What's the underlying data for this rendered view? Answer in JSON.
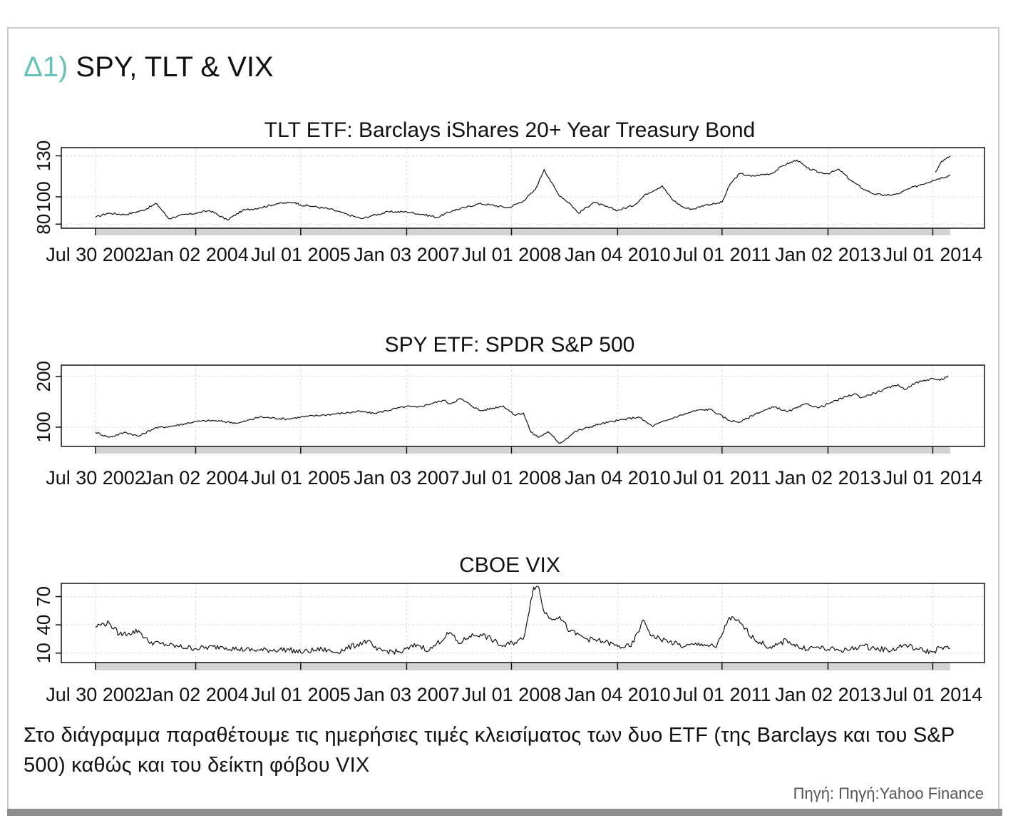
{
  "header": {
    "prefix": "Δ1)",
    "title": "SPY, TLT & VIX"
  },
  "caption": "Στο διάγραμμα παραθέτουμε τις ημερήσιες τιμές κλεισίματος των δυο ETF (της Barclays και του S&P 500) καθώς και του δείκτη φόβου VIX",
  "source": "Πηγή: Πηγή:Yahoo Finance",
  "colors": {
    "accent": "#69c2b6",
    "line": "#111111",
    "grid": "#d9d9d9",
    "date_band": "#d3d3d3"
  },
  "chart_data": [
    {
      "type": "line",
      "title": "TLT ETF: Barclays iShares 20+ Year Treasury Bond",
      "xlim": [
        "2002-07-30",
        "2014-09-30"
      ],
      "ylim": [
        77,
        136
      ],
      "yticks": [
        80,
        100,
        130
      ],
      "xticks": [
        {
          "label": "Jul 30 2002",
          "date": "2002-07-30"
        },
        {
          "label": "Jan 02 2004",
          "date": "2004-01-02"
        },
        {
          "label": "Jul 01 2005",
          "date": "2005-07-01"
        },
        {
          "label": "Jan 03 2007",
          "date": "2007-01-03"
        },
        {
          "label": "Jul 01 2008",
          "date": "2008-07-01"
        },
        {
          "label": "Jan 04 2010",
          "date": "2010-01-04"
        },
        {
          "label": "Jul 01 2011",
          "date": "2011-07-01"
        },
        {
          "label": "Jan 02 2013",
          "date": "2013-01-02"
        },
        {
          "label": "Jul 01 2014",
          "date": "2014-07-01"
        }
      ],
      "grid": true,
      "x": [
        "2002-07-30",
        "2002-10-01",
        "2003-01-02",
        "2003-04-01",
        "2003-06-13",
        "2003-08-15",
        "2003-10-01",
        "2004-01-02",
        "2004-03-15",
        "2004-06-14",
        "2004-09-01",
        "2004-12-01",
        "2005-03-01",
        "2005-06-01",
        "2005-07-01",
        "2005-09-01",
        "2005-12-01",
        "2006-03-01",
        "2006-05-15",
        "2006-07-01",
        "2006-10-01",
        "2007-01-03",
        "2007-04-01",
        "2007-06-12",
        "2007-09-01",
        "2007-11-01",
        "2008-01-15",
        "2008-03-15",
        "2008-06-15",
        "2008-09-01",
        "2008-11-01",
        "2008-12-18",
        "2009-01-15",
        "2009-03-01",
        "2009-05-01",
        "2009-06-15",
        "2009-09-01",
        "2009-11-01",
        "2010-01-04",
        "2010-04-01",
        "2010-06-01",
        "2010-08-24",
        "2010-10-15",
        "2010-12-15",
        "2011-02-01",
        "2011-04-01",
        "2011-06-01",
        "2011-07-01",
        "2011-08-15",
        "2011-10-01",
        "2011-12-01",
        "2012-01-15",
        "2012-03-15",
        "2012-05-15",
        "2012-07-25",
        "2012-09-15",
        "2012-11-15",
        "2013-01-02",
        "2013-03-01",
        "2013-05-01",
        "2013-07-01",
        "2013-09-01",
        "2013-11-01",
        "2013-12-31",
        "2014-03-01",
        "2014-05-01",
        "2014-07-01",
        "2014-09-30"
      ],
      "values": [
        85,
        88,
        87,
        90,
        95,
        84,
        86,
        88,
        90,
        83,
        90,
        92,
        95,
        96,
        94,
        93,
        91,
        87,
        84,
        86,
        89,
        89,
        87,
        85,
        90,
        92,
        95,
        94,
        92,
        97,
        105,
        120,
        113,
        102,
        95,
        88,
        96,
        93,
        90,
        94,
        102,
        108,
        98,
        92,
        91,
        94,
        95,
        96,
        110,
        117,
        115,
        116,
        117,
        123,
        127,
        121,
        118,
        117,
        120,
        112,
        106,
        102,
        101,
        102,
        106,
        109,
        112,
        116
      ],
      "extra_series": {
        "x": [
          "2014-07-15",
          "2014-08-15",
          "2014-09-30"
        ],
        "values": [
          118,
          126,
          130
        ]
      }
    },
    {
      "type": "line",
      "title": "SPY ETF: SPDR S&P 500",
      "xlim": [
        "2002-07-30",
        "2014-09-30"
      ],
      "ylim": [
        62,
        222
      ],
      "yticks": [
        100,
        200
      ],
      "xticks": [
        {
          "label": "Jul 30 2002",
          "date": "2002-07-30"
        },
        {
          "label": "Jan 02 2004",
          "date": "2004-01-02"
        },
        {
          "label": "Jul 01 2005",
          "date": "2005-07-01"
        },
        {
          "label": "Jan 03 2007",
          "date": "2007-01-03"
        },
        {
          "label": "Jul 01 2008",
          "date": "2008-07-01"
        },
        {
          "label": "Jan 04 2010",
          "date": "2010-01-04"
        },
        {
          "label": "Jul 01 2011",
          "date": "2011-07-01"
        },
        {
          "label": "Jan 02 2013",
          "date": "2013-01-02"
        },
        {
          "label": "Jul 01 2014",
          "date": "2014-07-01"
        }
      ],
      "grid": true,
      "x": [
        "2002-07-30",
        "2002-10-09",
        "2003-01-02",
        "2003-03-11",
        "2003-06-01",
        "2003-09-01",
        "2004-01-02",
        "2004-04-01",
        "2004-08-12",
        "2004-12-01",
        "2005-04-20",
        "2005-07-01",
        "2005-11-01",
        "2006-05-05",
        "2006-07-15",
        "2007-01-03",
        "2007-02-27",
        "2007-07-15",
        "2007-08-16",
        "2007-10-09",
        "2008-01-22",
        "2008-05-19",
        "2008-07-15",
        "2008-09-01",
        "2008-10-10",
        "2008-11-20",
        "2009-01-06",
        "2009-03-09",
        "2009-06-01",
        "2009-10-01",
        "2010-01-04",
        "2010-04-23",
        "2010-07-02",
        "2010-11-01",
        "2011-02-18",
        "2011-05-01",
        "2011-08-08",
        "2011-10-03",
        "2012-01-01",
        "2012-04-01",
        "2012-06-04",
        "2012-09-14",
        "2012-11-15",
        "2013-01-02",
        "2013-05-21",
        "2013-06-24",
        "2013-09-01",
        "2014-01-01",
        "2014-02-03",
        "2014-04-01",
        "2014-07-01",
        "2014-08-07",
        "2014-09-19"
      ],
      "values": [
        90,
        80,
        90,
        82,
        98,
        102,
        111,
        113,
        108,
        120,
        116,
        120,
        124,
        131,
        127,
        141,
        139,
        153,
        146,
        156,
        132,
        142,
        124,
        128,
        90,
        80,
        91,
        68,
        92,
        106,
        113,
        120,
        102,
        120,
        133,
        135,
        113,
        110,
        128,
        140,
        130,
        146,
        138,
        146,
        166,
        158,
        167,
        184,
        174,
        187,
        196,
        192,
        201
      ]
    },
    {
      "type": "line",
      "title": "CBOE VIX",
      "xlim": [
        "2002-07-30",
        "2014-09-30"
      ],
      "ylim": [
        0,
        84
      ],
      "yticks": [
        10,
        40,
        70
      ],
      "xticks": [
        {
          "label": "Jul 30 2002",
          "date": "2002-07-30"
        },
        {
          "label": "Jan 02 2004",
          "date": "2004-01-02"
        },
        {
          "label": "Jul 01 2005",
          "date": "2005-07-01"
        },
        {
          "label": "Jan 03 2007",
          "date": "2007-01-03"
        },
        {
          "label": "Jul 01 2008",
          "date": "2008-07-01"
        },
        {
          "label": "Jan 04 2010",
          "date": "2010-01-04"
        },
        {
          "label": "Jul 01 2011",
          "date": "2011-07-01"
        },
        {
          "label": "Jan 02 2013",
          "date": "2013-01-02"
        },
        {
          "label": "Jul 01 2014",
          "date": "2014-07-01"
        }
      ],
      "grid": true,
      "x": [
        "2002-07-30",
        "2002-08-20",
        "2002-10-09",
        "2002-12-01",
        "2003-01-20",
        "2003-03-11",
        "2003-05-01",
        "2003-07-01",
        "2003-10-01",
        "2004-01-02",
        "2004-05-17",
        "2004-08-12",
        "2004-12-01",
        "2005-04-20",
        "2005-07-01",
        "2005-10-20",
        "2006-01-01",
        "2006-06-13",
        "2006-08-01",
        "2006-12-01",
        "2007-02-27",
        "2007-05-01",
        "2007-08-16",
        "2007-10-01",
        "2007-11-26",
        "2008-01-22",
        "2008-03-17",
        "2008-05-15",
        "2008-09-01",
        "2008-10-24",
        "2008-11-20",
        "2008-12-15",
        "2009-01-20",
        "2009-03-09",
        "2009-05-01",
        "2009-08-01",
        "2009-11-01",
        "2010-01-04",
        "2010-03-15",
        "2010-05-20",
        "2010-07-01",
        "2010-10-01",
        "2010-12-15",
        "2011-03-16",
        "2011-06-01",
        "2011-08-08",
        "2011-10-03",
        "2011-12-15",
        "2012-03-15",
        "2012-06-01",
        "2012-08-15",
        "2012-11-15",
        "2013-01-02",
        "2013-04-15",
        "2013-06-24",
        "2013-09-01",
        "2013-12-01",
        "2014-02-03",
        "2014-04-14",
        "2014-07-01",
        "2014-08-07",
        "2014-09-30"
      ],
      "values": [
        38,
        40,
        42,
        30,
        31,
        34,
        22,
        20,
        17,
        15,
        17,
        14,
        13,
        14,
        11,
        14,
        11,
        23,
        13,
        11,
        19,
        13,
        32,
        20,
        28,
        30,
        25,
        17,
        25,
        80,
        80,
        55,
        47,
        49,
        33,
        25,
        22,
        17,
        17,
        45,
        28,
        22,
        17,
        20,
        16,
        48,
        42,
        25,
        15,
        24,
        15,
        16,
        14,
        13,
        18,
        15,
        13,
        19,
        14,
        11,
        16,
        15
      ]
    }
  ]
}
